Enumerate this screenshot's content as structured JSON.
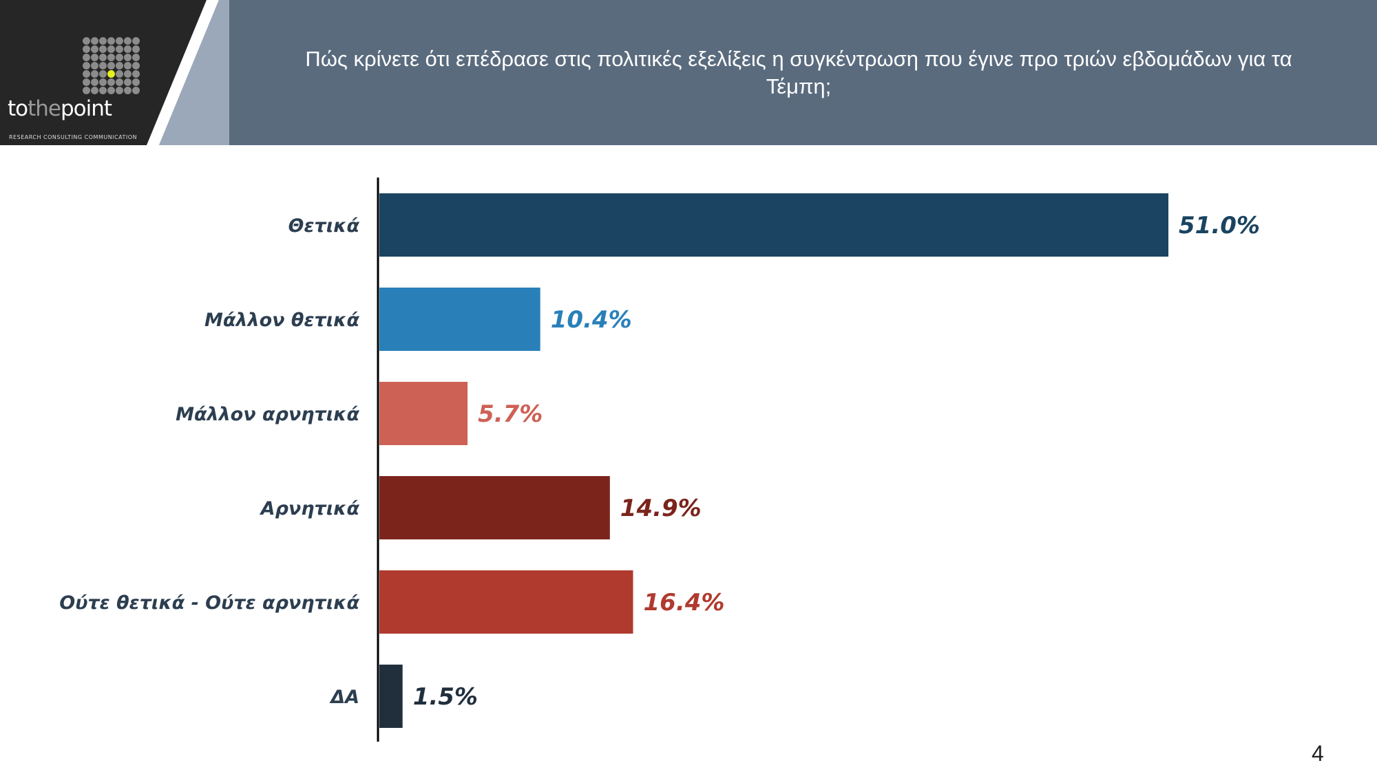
{
  "header": {
    "title": "Πώς κρίνετε ότι επέδρασε στις πολιτικές εξελίξεις η συγκέντρωση που έγινε προ τριών εβδομάδων για τα Τέμπη;",
    "logo": {
      "text_to": "to",
      "text_the": "the",
      "text_point": "point",
      "subtitle": "RESEARCH CONSULTING COMMUNICATION"
    }
  },
  "chart_data": {
    "type": "bar",
    "orientation": "horizontal",
    "categories": [
      "Θετικά",
      "Μάλλον θετικά",
      "Μάλλον αρνητικά",
      "Αρνητικά",
      "Ούτε θετικά - Ούτε αρνητικά",
      "ΔΑ"
    ],
    "values": [
      51.0,
      10.4,
      5.7,
      14.9,
      16.4,
      1.5
    ],
    "labels": [
      "51.0%",
      "10.4%",
      "5.7%",
      "14.9%",
      "16.4%",
      "1.5%"
    ],
    "colors": [
      "#1a4461",
      "#2980b9",
      "#cd6155",
      "#7b241c",
      "#b03a2e",
      "#212f3d"
    ],
    "xlim": [
      0,
      51
    ],
    "grid": false,
    "legend": "none"
  },
  "page_number": "4"
}
